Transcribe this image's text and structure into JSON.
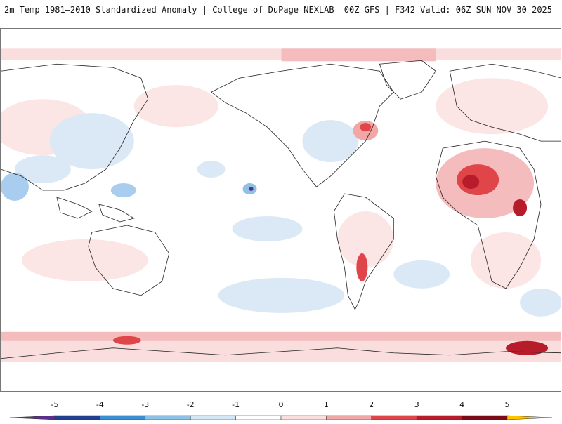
{
  "header": {
    "left_title": "2m Temp 1981–2010 Standardized Anomaly | College of DuPage NEXLAB",
    "right_title": "00Z GFS | F342 Valid: 06Z SUN NOV 30 2025"
  },
  "map": {
    "type": "global-anomaly-map",
    "variable": "2m Temp 1981–2010 Standardized Anomaly",
    "projection": "cylindrical",
    "coastline_color": "#222222"
  },
  "colorbar": {
    "ticks": [
      "-5",
      "-4",
      "-3",
      "-2",
      "-1",
      "0",
      "1",
      "2",
      "3",
      "4",
      "5"
    ],
    "colors": [
      "#5a2f8f",
      "#23408e",
      "#3b8fd0",
      "#8ec1e6",
      "#d3e6f5",
      "#ffffff",
      "#fadede",
      "#f2a7a7",
      "#e0454a",
      "#b71c2b",
      "#7a0a16",
      "#ffc400"
    ]
  }
}
